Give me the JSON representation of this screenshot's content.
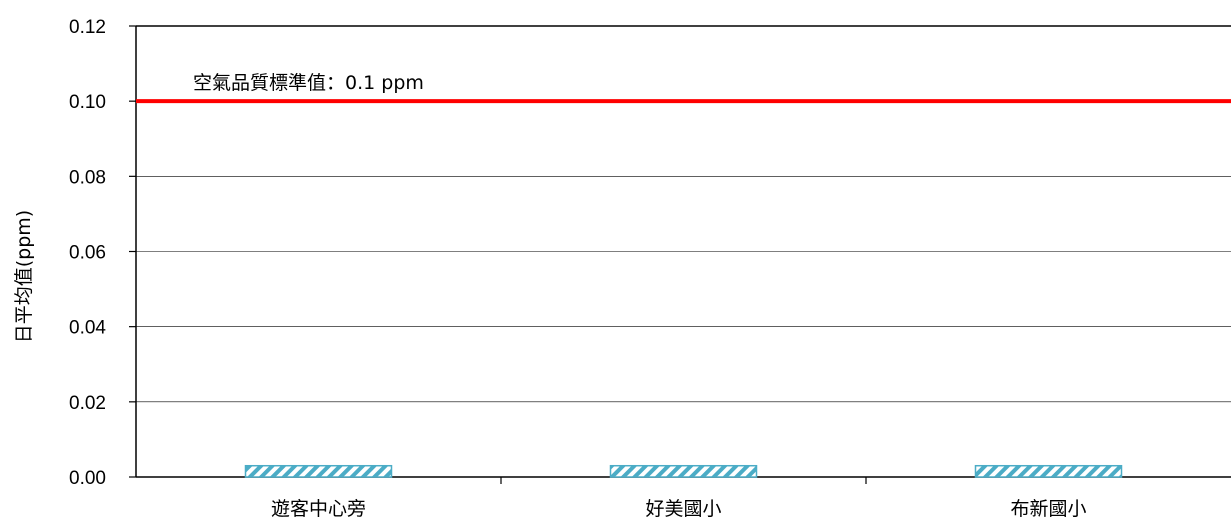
{
  "chart_data": {
    "type": "bar",
    "title": "",
    "xlabel": "",
    "ylabel": "日平均值(ppm)",
    "ylim": [
      0,
      0.12
    ],
    "yticks": [
      "0.00",
      "0.02",
      "0.04",
      "0.06",
      "0.08",
      "0.10",
      "0.12"
    ],
    "ytick_values": [
      0,
      0.02,
      0.04,
      0.06,
      0.08,
      0.1,
      0.12
    ],
    "categories": [
      "遊客中心旁",
      "好美國小",
      "布新國小"
    ],
    "values": [
      0.003,
      0.003,
      0.003
    ],
    "bar_pattern": "diagonal-hatch",
    "bar_color": "#4bacc6",
    "grid": true,
    "legend": false,
    "reference_line": {
      "value": 0.1,
      "label": "空氣品質標準值：0.1 ppm",
      "color": "#ff0000"
    }
  }
}
